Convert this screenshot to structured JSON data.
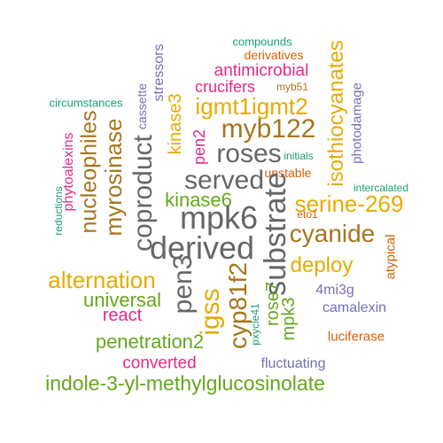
{
  "palette": {
    "teal": "#1b9e77",
    "orange": "#d95f02",
    "purple": "#7570b3",
    "magenta": "#e7298a",
    "green": "#66a61e",
    "gold": "#e6ab02",
    "brown": "#a6761d",
    "gray": "#666666"
  },
  "words": [
    {
      "text": "compounds",
      "color": "teal"
    },
    {
      "text": "derivatives",
      "color": "orange"
    },
    {
      "text": "stressors",
      "color": "purple"
    },
    {
      "text": "isothiocyanates",
      "color": "gold"
    },
    {
      "text": "antimicrobial",
      "color": "magenta"
    },
    {
      "text": "crucifers",
      "color": "magenta"
    },
    {
      "text": "myb51",
      "color": "brown"
    },
    {
      "text": "circumstances",
      "color": "teal"
    },
    {
      "text": "cassette",
      "color": "purple"
    },
    {
      "text": "kinase3",
      "color": "gold"
    },
    {
      "text": "igmt1igmt2",
      "color": "gold"
    },
    {
      "text": "photodamage",
      "color": "purple"
    },
    {
      "text": "myb122",
      "color": "brown"
    },
    {
      "text": "nucleophiles",
      "color": "brown"
    },
    {
      "text": "myrosinase",
      "color": "brown"
    },
    {
      "text": "pen2",
      "color": "magenta"
    },
    {
      "text": "roses",
      "color": "gray"
    },
    {
      "text": "initials",
      "color": "teal"
    },
    {
      "text": "phytoalexins",
      "color": "magenta"
    },
    {
      "text": "coproduct",
      "color": "gray"
    },
    {
      "text": "unstable",
      "color": "orange"
    },
    {
      "text": "served",
      "color": "gray"
    },
    {
      "text": "intercalated",
      "color": "teal"
    },
    {
      "text": "reductions",
      "color": "teal"
    },
    {
      "text": "kinase6",
      "color": "green"
    },
    {
      "text": "serine-269",
      "color": "gold"
    },
    {
      "text": "substrate",
      "color": "gray"
    },
    {
      "text": "mpk6",
      "color": "gray"
    },
    {
      "text": "eto1",
      "color": "orange"
    },
    {
      "text": "cyanide",
      "color": "brown"
    },
    {
      "text": "derived",
      "color": "gray"
    },
    {
      "text": "atypical",
      "color": "orange"
    },
    {
      "text": "alternation",
      "color": "gold"
    },
    {
      "text": "pen3",
      "color": "gray"
    },
    {
      "text": "deploy",
      "color": "gold"
    },
    {
      "text": "cyp81f2",
      "color": "brown"
    },
    {
      "text": "igss",
      "color": "gold"
    },
    {
      "text": "4mi3g",
      "color": "purple"
    },
    {
      "text": "universal",
      "color": "green"
    },
    {
      "text": "rose7",
      "color": "green"
    },
    {
      "text": "mpk3",
      "color": "green"
    },
    {
      "text": "camalexin",
      "color": "purple"
    },
    {
      "text": "react",
      "color": "magenta"
    },
    {
      "text": "pxycle41",
      "color": "teal"
    },
    {
      "text": "penetration2",
      "color": "green"
    },
    {
      "text": "luciferase",
      "color": "orange"
    },
    {
      "text": "converted",
      "color": "magenta"
    },
    {
      "text": "fluctuating",
      "color": "purple"
    },
    {
      "text": "indole-3-yl-methylglucosinolate",
      "color": "green"
    }
  ]
}
